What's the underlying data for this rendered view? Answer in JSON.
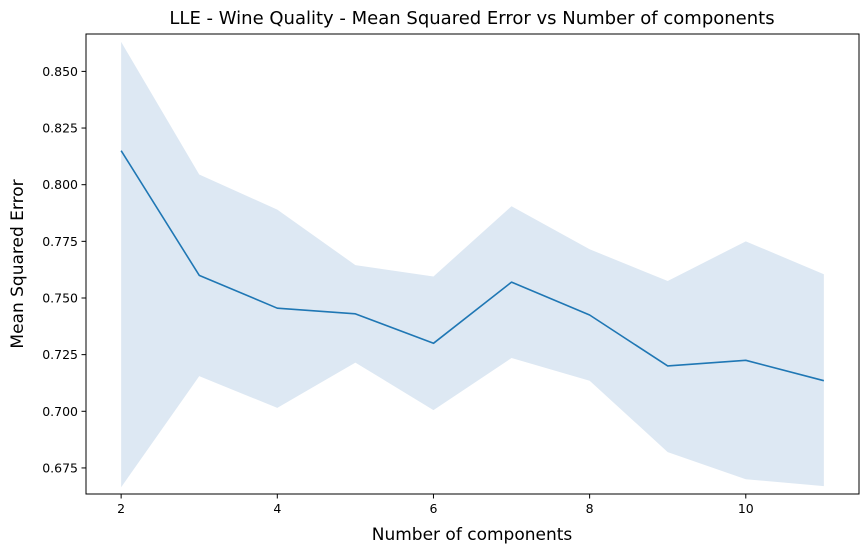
{
  "chart_data": {
    "type": "line",
    "title": "LLE - Wine Quality - Mean Squared Error vs Number of components",
    "xlabel": "Number of components",
    "ylabel": "Mean Squared Error",
    "xlim": [
      1.55,
      11.45
    ],
    "ylim": [
      0.6635,
      0.8665
    ],
    "xticks": [
      2,
      4,
      6,
      8,
      10
    ],
    "yticks": [
      0.675,
      0.7,
      0.725,
      0.75,
      0.775,
      0.8,
      0.825,
      0.85
    ],
    "grid": false,
    "colors": {
      "line": "#1f77b4",
      "band": "#dde8f3"
    },
    "x": [
      2,
      3,
      4,
      5,
      6,
      7,
      8,
      9,
      10,
      11
    ],
    "series": [
      {
        "values": [
          0.815,
          0.76,
          0.7455,
          0.743,
          0.73,
          0.757,
          0.7425,
          0.72,
          0.7225,
          0.7135
        ]
      }
    ],
    "band": {
      "upper": [
        0.863,
        0.8045,
        0.789,
        0.7645,
        0.7595,
        0.7905,
        0.7715,
        0.7575,
        0.775,
        0.7605
      ],
      "lower": [
        0.6665,
        0.7155,
        0.7015,
        0.7215,
        0.7005,
        0.7235,
        0.7135,
        0.682,
        0.67,
        0.667
      ]
    }
  }
}
